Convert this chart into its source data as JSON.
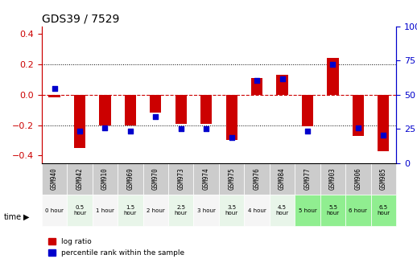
{
  "title": "GDS39 / 7529",
  "samples": [
    "GSM940",
    "GSM942",
    "GSM910",
    "GSM969",
    "GSM970",
    "GSM973",
    "GSM974",
    "GSM975",
    "GSM976",
    "GSM984",
    "GSM977",
    "GSM903",
    "GSM906",
    "GSM985"
  ],
  "times": [
    "0 hour",
    "0.5\nhour",
    "1 hour",
    "1.5\nhour",
    "2 hour",
    "2.5\nhour",
    "3 hour",
    "3.5\nhour",
    "4 hour",
    "4.5\nhour",
    "5 hour",
    "5.5\nhour",
    "6 hour",
    "6.5\nhour"
  ],
  "log_ratio": [
    -0.02,
    -0.35,
    -0.2,
    -0.2,
    -0.12,
    -0.19,
    -0.19,
    -0.3,
    0.11,
    0.13,
    -0.21,
    0.24,
    -0.27,
    -0.37
  ],
  "percentile": [
    0.55,
    -0.195,
    -0.145,
    -0.195,
    -0.1,
    -0.185,
    -0.18,
    -0.26,
    0.12,
    0.14,
    -0.195,
    0.19,
    -0.22,
    -0.29
  ],
  "percentile_rank": [
    55,
    20,
    23,
    20,
    32,
    22,
    22,
    15,
    62,
    63,
    20,
    75,
    23,
    17
  ],
  "ylim_left": [
    -0.45,
    0.45
  ],
  "ylim_right": [
    0,
    100
  ],
  "bar_color": "#cc0000",
  "dot_color": "#0000cc",
  "bg_color_odd": "#d4edda",
  "bg_color_even": "#f0f0f0",
  "bg_color_dark": "#90d890",
  "grid_color": "#000000",
  "axis_left_color": "#cc0000",
  "axis_right_color": "#0000cc",
  "time_row_colors": [
    "#f5f5f5",
    "#e8f5e9",
    "#f5f5f5",
    "#e8f5e9",
    "#f5f5f5",
    "#e8f5e9",
    "#f5f5f5",
    "#e8f5e9",
    "#f5f5f5",
    "#e8f5e9",
    "#90ee90",
    "#90ee90",
    "#90ee90",
    "#90ee90"
  ]
}
